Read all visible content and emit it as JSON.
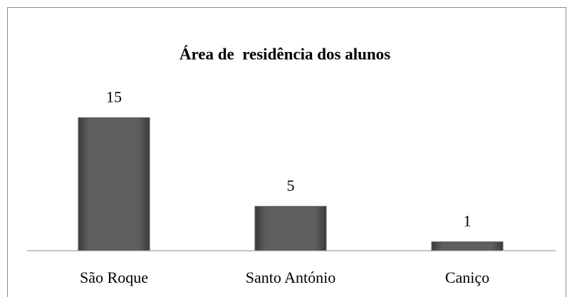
{
  "chart_data": {
    "type": "bar",
    "title": "Área de  residência dos alunos",
    "categories": [
      "São Roque",
      "Santo António",
      "Caniço"
    ],
    "values": [
      15,
      5,
      1
    ],
    "color": "#5a5a5a",
    "ylim": [
      0,
      16
    ]
  }
}
